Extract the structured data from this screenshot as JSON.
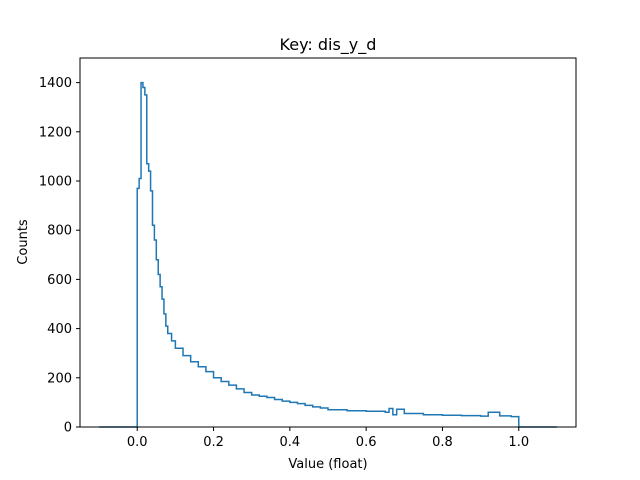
{
  "chart_data": {
    "type": "histogram-step",
    "title": "Key: dis_y_d",
    "xlabel": "Value (float)",
    "ylabel": "Counts",
    "xlim": [
      -0.15,
      1.15
    ],
    "ylim": [
      0,
      1500
    ],
    "xticks": [
      0.0,
      0.2,
      0.4,
      0.6,
      0.8,
      1.0
    ],
    "xtick_labels": [
      "0.0",
      "0.2",
      "0.4",
      "0.6",
      "0.8",
      "1.0"
    ],
    "yticks": [
      0,
      200,
      400,
      600,
      800,
      1000,
      1200,
      1400
    ],
    "ytick_labels": [
      "0",
      "200",
      "400",
      "600",
      "800",
      "1000",
      "1200",
      "1400"
    ],
    "grid": false,
    "line_color": "#1f77b4",
    "series": [
      {
        "x": [
          -0.1,
          0.0,
          0.005,
          0.01,
          0.015,
          0.02,
          0.025,
          0.03,
          0.035,
          0.04,
          0.045,
          0.05,
          0.055,
          0.06,
          0.065,
          0.07,
          0.075,
          0.08,
          0.09,
          0.1,
          0.12,
          0.14,
          0.16,
          0.18,
          0.2,
          0.22,
          0.24,
          0.26,
          0.28,
          0.3,
          0.32,
          0.34,
          0.36,
          0.38,
          0.4,
          0.42,
          0.44,
          0.46,
          0.48,
          0.5,
          0.55,
          0.6,
          0.65,
          0.66,
          0.67,
          0.68,
          0.7,
          0.75,
          0.8,
          0.85,
          0.9,
          0.92,
          0.95,
          0.98,
          1.0,
          1.1
        ],
        "y": [
          0,
          970,
          1010,
          1400,
          1380,
          1350,
          1070,
          1040,
          960,
          820,
          760,
          680,
          620,
          570,
          520,
          460,
          410,
          380,
          350,
          320,
          290,
          265,
          245,
          225,
          200,
          185,
          170,
          155,
          140,
          130,
          125,
          120,
          112,
          105,
          100,
          95,
          88,
          82,
          77,
          70,
          66,
          64,
          60,
          75,
          50,
          72,
          55,
          50,
          48,
          46,
          44,
          60,
          45,
          42,
          0,
          0
        ]
      }
    ]
  }
}
